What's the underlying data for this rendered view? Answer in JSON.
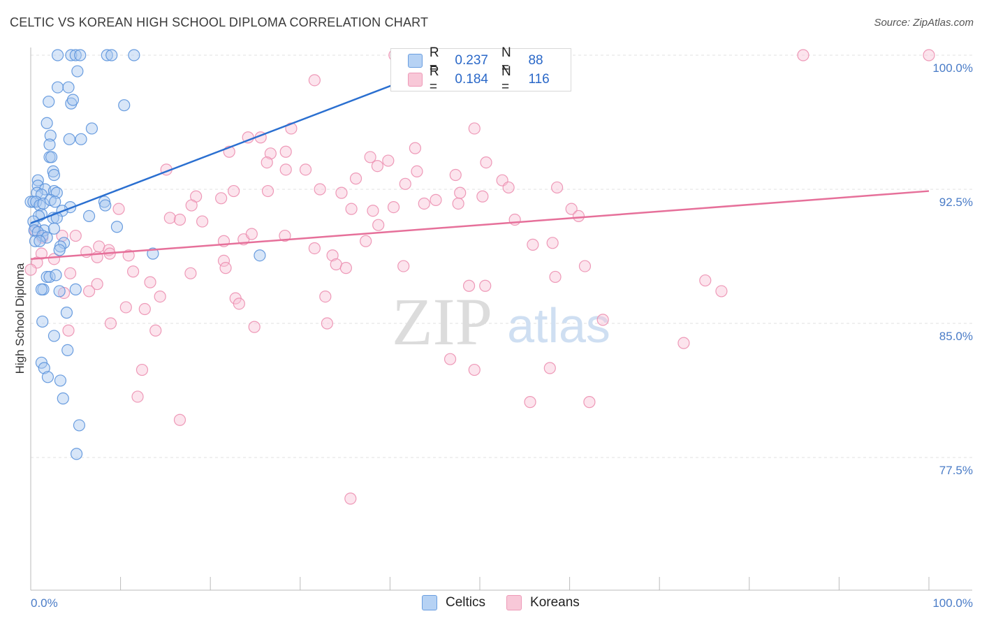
{
  "header": {
    "title": "CELTIC VS KOREAN HIGH SCHOOL DIPLOMA CORRELATION CHART",
    "source": "Source: ZipAtlas.com"
  },
  "watermark": {
    "zip": "ZIP",
    "atlas": "atlas"
  },
  "legend": {
    "rows": [
      {
        "r_label": "R =",
        "r_value": "0.237",
        "n_label": "N =",
        "n_value": "88",
        "color": "#8fb8ec"
      },
      {
        "r_label": "R =",
        "r_value": "0.184",
        "n_label": "N =",
        "n_value": "116",
        "color": "#f4a9c2"
      }
    ]
  },
  "bottom_legend": {
    "celtics": "Celtics",
    "koreans": "Koreans"
  },
  "chart_data": {
    "type": "scatter",
    "title": "CELTIC VS KOREAN HIGH SCHOOL DIPLOMA CORRELATION CHART",
    "xlabel": "",
    "ylabel": "High School Diploma",
    "xlim": [
      0,
      100
    ],
    "ylim": [
      70.9,
      101.5
    ],
    "x_tick_labels": [
      "0.0%",
      "100.0%"
    ],
    "y_ticks": [
      77.5,
      85.0,
      92.5,
      100.0
    ],
    "y_tick_labels": [
      "77.5%",
      "85.0%",
      "92.5%",
      "100.0%"
    ],
    "grid": "dashed horizontal",
    "colors": {
      "celtics_fill": "#a8c8f0",
      "celtics_stroke": "#5a92dc",
      "celtics_line": "#2a6fd0",
      "koreans_fill": "#f8c4d6",
      "koreans_stroke": "#ec8fb0",
      "koreans_line": "#e6709a"
    },
    "series": [
      {
        "name": "Celtics",
        "trend": {
          "x": [
            0,
            49
          ],
          "y": [
            90.6,
            100.0
          ]
        },
        "points": [
          [
            3,
            100
          ],
          [
            4.5,
            100
          ],
          [
            5,
            100
          ],
          [
            5.5,
            100
          ],
          [
            8.5,
            100
          ],
          [
            9,
            100
          ],
          [
            11.5,
            100
          ],
          [
            5.2,
            99.1
          ],
          [
            3,
            98.2
          ],
          [
            4.2,
            98.2
          ],
          [
            2,
            97.4
          ],
          [
            4.5,
            97.3
          ],
          [
            4.7,
            97.5
          ],
          [
            10.4,
            97.2
          ],
          [
            1.8,
            96.2
          ],
          [
            6.8,
            95.9
          ],
          [
            2.2,
            95.5
          ],
          [
            4.3,
            95.3
          ],
          [
            5.6,
            95.3
          ],
          [
            2.1,
            95
          ],
          [
            2.1,
            94.3
          ],
          [
            2.3,
            94.3
          ],
          [
            2.5,
            93.5
          ],
          [
            2.6,
            93.3
          ],
          [
            0.8,
            93
          ],
          [
            0.8,
            92.7
          ],
          [
            1.6,
            92.5
          ],
          [
            0.7,
            92.3
          ],
          [
            1.2,
            92.2
          ],
          [
            2.6,
            92.4
          ],
          [
            2.9,
            92.3
          ],
          [
            0,
            91.8
          ],
          [
            0.3,
            91.8
          ],
          [
            0.6,
            91.8
          ],
          [
            1,
            91.6
          ],
          [
            1.4,
            91.7
          ],
          [
            2.2,
            91.9
          ],
          [
            2.7,
            91.8
          ],
          [
            8.2,
            91.8
          ],
          [
            8.3,
            91.6
          ],
          [
            4.4,
            91.5
          ],
          [
            3.5,
            91.3
          ],
          [
            1.2,
            91.1
          ],
          [
            0.9,
            91
          ],
          [
            2.5,
            90.9
          ],
          [
            2.9,
            90.9
          ],
          [
            6.5,
            91
          ],
          [
            0.3,
            90.7
          ],
          [
            0.5,
            90.4
          ],
          [
            1.5,
            90.2
          ],
          [
            2.6,
            90.3
          ],
          [
            9.6,
            90.4
          ],
          [
            0.4,
            90.2
          ],
          [
            0.8,
            90.1
          ],
          [
            1.3,
            89.9
          ],
          [
            1.8,
            89.8
          ],
          [
            0.5,
            89.6
          ],
          [
            1,
            89.6
          ],
          [
            3.7,
            89.5
          ],
          [
            3.3,
            89.3
          ],
          [
            3.2,
            89.1
          ],
          [
            13.6,
            88.9
          ],
          [
            25.5,
            88.8
          ],
          [
            1.8,
            87.6
          ],
          [
            2.1,
            87.6
          ],
          [
            2.8,
            87.7
          ],
          [
            5,
            86.9
          ],
          [
            1.4,
            86.9
          ],
          [
            1.2,
            86.9
          ],
          [
            3.2,
            86.8
          ],
          [
            4,
            85.6
          ],
          [
            1.3,
            85.1
          ],
          [
            2.6,
            84.3
          ],
          [
            4.1,
            83.5
          ],
          [
            1.2,
            82.8
          ],
          [
            1.5,
            82.5
          ],
          [
            1.9,
            82
          ],
          [
            3.3,
            81.8
          ],
          [
            3.6,
            80.8
          ],
          [
            5.4,
            79.3
          ],
          [
            5.1,
            77.7
          ]
        ]
      },
      {
        "name": "Koreans",
        "trend": {
          "x": [
            0,
            100
          ],
          "y": [
            88.6,
            92.4
          ]
        },
        "points": [
          [
            40.5,
            100
          ],
          [
            86,
            100
          ],
          [
            100,
            100
          ],
          [
            31.6,
            98.6
          ],
          [
            49.4,
            95.9
          ],
          [
            29,
            95.9
          ],
          [
            24.2,
            95.4
          ],
          [
            25.6,
            95.4
          ],
          [
            42.8,
            94.8
          ],
          [
            26.7,
            94.5
          ],
          [
            28.4,
            94.6
          ],
          [
            22.1,
            94.6
          ],
          [
            26.3,
            94.0
          ],
          [
            37.8,
            94.3
          ],
          [
            39.8,
            94.1
          ],
          [
            50.7,
            94
          ],
          [
            15.1,
            93.6
          ],
          [
            28.4,
            93.6
          ],
          [
            30.6,
            93.6
          ],
          [
            38.6,
            93.8
          ],
          [
            43.0,
            93.5
          ],
          [
            47.3,
            93.3
          ],
          [
            36.2,
            93.1
          ],
          [
            52.5,
            93
          ],
          [
            41.7,
            92.8
          ],
          [
            53.2,
            92.6
          ],
          [
            58.6,
            92.6
          ],
          [
            32.2,
            92.5
          ],
          [
            22.6,
            92.4
          ],
          [
            26.4,
            92.4
          ],
          [
            34.6,
            92.3
          ],
          [
            47.8,
            92.3
          ],
          [
            18.4,
            92.1
          ],
          [
            21.2,
            92.0
          ],
          [
            50.3,
            92.1
          ],
          [
            45.1,
            91.9
          ],
          [
            43.8,
            91.7
          ],
          [
            47.6,
            91.7
          ],
          [
            9.8,
            91.4
          ],
          [
            17.9,
            91.6
          ],
          [
            35.7,
            91.4
          ],
          [
            38.1,
            91.3
          ],
          [
            40.4,
            91.5
          ],
          [
            60.2,
            91.4
          ],
          [
            61,
            91
          ],
          [
            15.5,
            90.9
          ],
          [
            16.6,
            90.8
          ],
          [
            19.1,
            90.7
          ],
          [
            38.7,
            90.5
          ],
          [
            53.9,
            90.8
          ],
          [
            0.5,
            90.2
          ],
          [
            1.3,
            89.8
          ],
          [
            3.5,
            89.9
          ],
          [
            5,
            89.9
          ],
          [
            21.5,
            89.6
          ],
          [
            23.7,
            89.7
          ],
          [
            28.3,
            89.9
          ],
          [
            24.6,
            90.0
          ],
          [
            37.3,
            89.6
          ],
          [
            31.6,
            89.2
          ],
          [
            55.9,
            89.4
          ],
          [
            58.1,
            89.5
          ],
          [
            7.6,
            89.3
          ],
          [
            1.2,
            88.9
          ],
          [
            6.2,
            89
          ],
          [
            8.7,
            89.1
          ],
          [
            8.8,
            88.9
          ],
          [
            10.9,
            88.8
          ],
          [
            2.6,
            88.6
          ],
          [
            7.4,
            88.7
          ],
          [
            21.5,
            88.5
          ],
          [
            33.6,
            88.8
          ],
          [
            0.7,
            88.4
          ],
          [
            34,
            88.3
          ],
          [
            21.7,
            88.1
          ],
          [
            35.1,
            88.1
          ],
          [
            41.5,
            88.2
          ],
          [
            61.7,
            88.2
          ],
          [
            0,
            88
          ],
          [
            4.4,
            87.8
          ],
          [
            11.4,
            87.9
          ],
          [
            17.8,
            87.8
          ],
          [
            58.4,
            87.6
          ],
          [
            13.3,
            87.3
          ],
          [
            7.4,
            87.2
          ],
          [
            50.6,
            87.1
          ],
          [
            48.8,
            87.1
          ],
          [
            75.1,
            87.4
          ],
          [
            76.9,
            86.8
          ],
          [
            6.5,
            86.8
          ],
          [
            3.7,
            86.7
          ],
          [
            14.4,
            86.5
          ],
          [
            22.8,
            86.4
          ],
          [
            32.8,
            86.5
          ],
          [
            23.2,
            86.1
          ],
          [
            10.6,
            85.9
          ],
          [
            12.7,
            85.8
          ],
          [
            8.9,
            85
          ],
          [
            33,
            85
          ],
          [
            24.9,
            84.8
          ],
          [
            63.7,
            85.2
          ],
          [
            13.9,
            84.6
          ],
          [
            4.2,
            84.6
          ],
          [
            72.7,
            83.9
          ],
          [
            46.7,
            83
          ],
          [
            12.4,
            82.4
          ],
          [
            49.4,
            82.4
          ],
          [
            57.8,
            82.5
          ],
          [
            11.9,
            80.9
          ],
          [
            55.6,
            80.6
          ],
          [
            62.2,
            80.6
          ],
          [
            16.6,
            79.6
          ],
          [
            35.6,
            75.2
          ]
        ]
      }
    ]
  }
}
